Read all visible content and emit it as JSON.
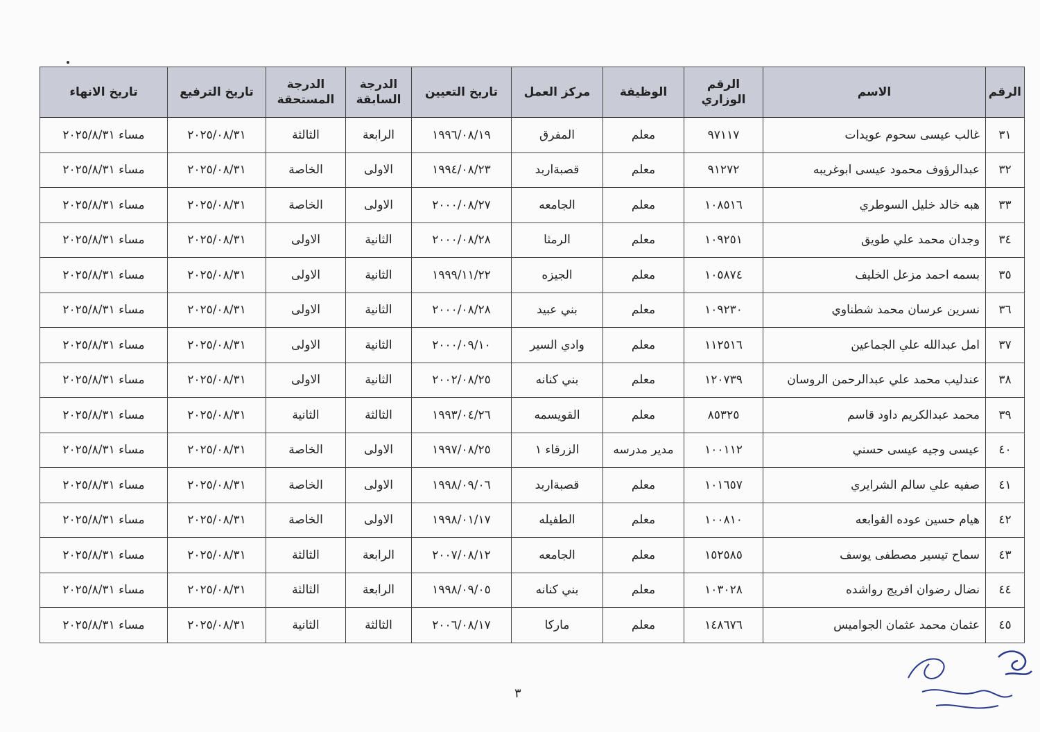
{
  "headers": [
    "الرقم",
    "الاسم",
    "الرقم الوزاري",
    "الوظيفة",
    "مركز العمل",
    "تاريخ التعيين",
    "الدرجة السابقة",
    "الدرجة المستحقة",
    "تاريخ الترفيع",
    "تاريخ الانهاء"
  ],
  "rows": [
    [
      "٣١",
      "غالب عيسى سحوم عويدات",
      "٩٧١١٧",
      "معلم",
      "المفرق",
      "١٩٩٦/٠٨/١٩",
      "الرابعة",
      "الثالثة",
      "٢٠٢٥/٠٨/٣١",
      "مساء ٢٠٢٥/٨/٣١"
    ],
    [
      "٣٢",
      "عبدالرؤوف محمود عيسى ابوغريبه",
      "٩١٢٧٢",
      "معلم",
      "قصبةاربد",
      "١٩٩٤/٠٨/٢٣",
      "الاولى",
      "الخاصة",
      "٢٠٢٥/٠٨/٣١",
      "مساء ٢٠٢٥/٨/٣١"
    ],
    [
      "٣٣",
      "هبه خالد خليل السوطري",
      "١٠٨٥١٦",
      "معلم",
      "الجامعه",
      "٢٠٠٠/٠٨/٢٧",
      "الاولى",
      "الخاصة",
      "٢٠٢٥/٠٨/٣١",
      "مساء ٢٠٢٥/٨/٣١"
    ],
    [
      "٣٤",
      "وجدان محمد علي طويق",
      "١٠٩٢٥١",
      "معلم",
      "الرمثا",
      "٢٠٠٠/٠٨/٢٨",
      "الثانية",
      "الاولى",
      "٢٠٢٥/٠٨/٣١",
      "مساء ٢٠٢٥/٨/٣١"
    ],
    [
      "٣٥",
      "بسمه احمد مزعل الخليف",
      "١٠٥٨٧٤",
      "معلم",
      "الجيزه",
      "١٩٩٩/١١/٢٢",
      "الثانية",
      "الاولى",
      "٢٠٢٥/٠٨/٣١",
      "مساء ٢٠٢٥/٨/٣١"
    ],
    [
      "٣٦",
      "نسرين عرسان محمد شطناوي",
      "١٠٩٢٣٠",
      "معلم",
      "بني عبيد",
      "٢٠٠٠/٠٨/٢٨",
      "الثانية",
      "الاولى",
      "٢٠٢٥/٠٨/٣١",
      "مساء ٢٠٢٥/٨/٣١"
    ],
    [
      "٣٧",
      "امل عبدالله علي الجماعين",
      "١١٢٥١٦",
      "معلم",
      "وادي السير",
      "٢٠٠٠/٠٩/١٠",
      "الثانية",
      "الاولى",
      "٢٠٢٥/٠٨/٣١",
      "مساء ٢٠٢٥/٨/٣١"
    ],
    [
      "٣٨",
      "عندليب محمد علي عبدالرحمن الروسان",
      "١٢٠٧٣٩",
      "معلم",
      "بني كنانه",
      "٢٠٠٢/٠٨/٢٥",
      "الثانية",
      "الاولى",
      "٢٠٢٥/٠٨/٣١",
      "مساء ٢٠٢٥/٨/٣١"
    ],
    [
      "٣٩",
      "محمد عبدالكريم داود قاسم",
      "٨٥٣٢٥",
      "معلم",
      "القويسمه",
      "١٩٩٣/٠٤/٢٦",
      "الثالثة",
      "الثانية",
      "٢٠٢٥/٠٨/٣١",
      "مساء ٢٠٢٥/٨/٣١"
    ],
    [
      "٤٠",
      "عيسى وجيه عيسى حسني",
      "١٠٠١١٢",
      "مدير مدرسه",
      "الزرقاء ١",
      "١٩٩٧/٠٨/٢٥",
      "الاولى",
      "الخاصة",
      "٢٠٢٥/٠٨/٣١",
      "مساء ٢٠٢٥/٨/٣١"
    ],
    [
      "٤١",
      "صفيه علي سالم الشرايري",
      "١٠١٦٥٧",
      "معلم",
      "قصبةاربد",
      "١٩٩٨/٠٩/٠٦",
      "الاولى",
      "الخاصة",
      "٢٠٢٥/٠٨/٣١",
      "مساء ٢٠٢٥/٨/٣١"
    ],
    [
      "٤٢",
      "هيام حسين عوده القوابعه",
      "١٠٠٨١٠",
      "معلم",
      "الطفيله",
      "١٩٩٨/٠١/١٧",
      "الاولى",
      "الخاصة",
      "٢٠٢٥/٠٨/٣١",
      "مساء ٢٠٢٥/٨/٣١"
    ],
    [
      "٤٣",
      "سماح تيسير مصطفى يوسف",
      "١٥٢٥٨٥",
      "معلم",
      "الجامعه",
      "٢٠٠٧/٠٨/١٢",
      "الرابعة",
      "الثالثة",
      "٢٠٢٥/٠٨/٣١",
      "مساء ٢٠٢٥/٨/٣١"
    ],
    [
      "٤٤",
      "نضال رضوان افريج رواشده",
      "١٠٣٠٢٨",
      "معلم",
      "بني كنانه",
      "١٩٩٨/٠٩/٠٥",
      "الرابعة",
      "الثالثة",
      "٢٠٢٥/٠٨/٣١",
      "مساء ٢٠٢٥/٨/٣١"
    ],
    [
      "٤٥",
      "عثمان محمد عثمان الجواميس",
      "١٤٨٦٧٦",
      "معلم",
      "ماركا",
      "٢٠٠٦/٠٨/١٧",
      "الثالثة",
      "الثانية",
      "٢٠٢٥/٠٨/٣١",
      "مساء ٢٠٢٥/٨/٣١"
    ]
  ],
  "page_number": "٣"
}
